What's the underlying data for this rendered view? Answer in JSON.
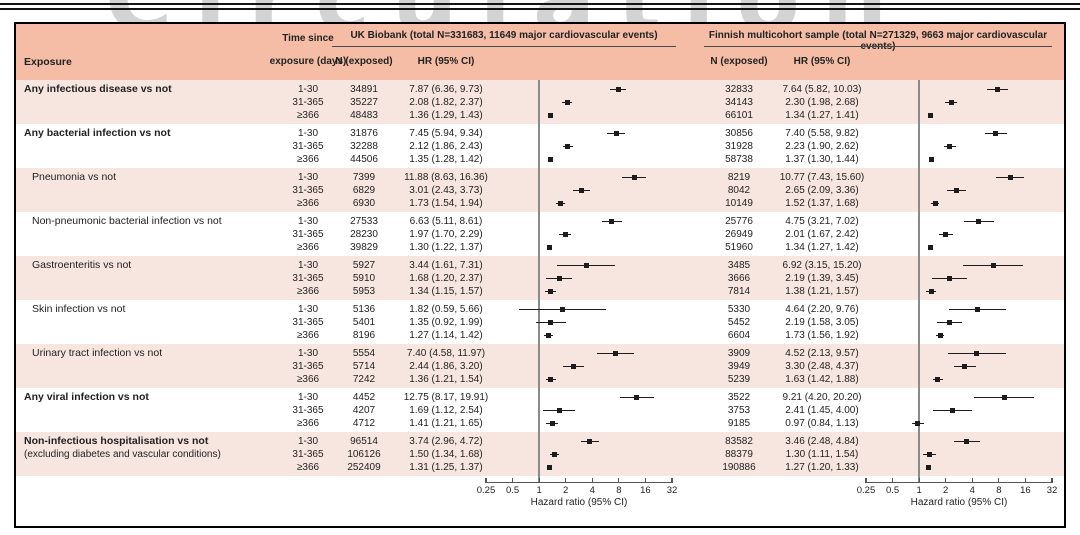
{
  "watermark": "Circulation",
  "table": {
    "headers": {
      "exposure": "Exposure",
      "time_line1": "Time since",
      "time_line2": "exposure (days)",
      "n_exposed": "N (exposed)",
      "hr": "HR (95% CI)"
    },
    "cohorts": [
      {
        "title": "UK Biobank (total N=331683, 11649 major cardiovascular events)"
      },
      {
        "title": "Finnish multicohort sample (total N=271329, 9663 major cardiovascular events)"
      }
    ]
  },
  "colors": {
    "header_bg": "#f5bda6",
    "row_alt_bg": "#f6e6df",
    "marker": "#1c1c1c",
    "reference_line": "#8a8a8a"
  },
  "chart_data": {
    "type": "forest",
    "x_scale": "log2",
    "x_range": [
      0.25,
      32
    ],
    "x_ticks": [
      0.25,
      0.5,
      1,
      2,
      4,
      8,
      16,
      32
    ],
    "x_label": "Hazard ratio (95% CI)",
    "reference_line": 1,
    "time_categories": [
      "1-30",
      "31-365",
      "≥366"
    ],
    "cohort_keys": [
      "uk",
      "fi"
    ],
    "groups": [
      {
        "exposure": "Any infectious disease vs not",
        "bold": true,
        "note": "",
        "uk": {
          "n": [
            34891,
            35227,
            48483
          ],
          "est": [
            [
              7.87,
              6.36,
              9.73
            ],
            [
              2.08,
              1.82,
              2.37
            ],
            [
              1.36,
              1.29,
              1.43
            ]
          ]
        },
        "fi": {
          "n": [
            32833,
            34143,
            66101
          ],
          "est": [
            [
              7.64,
              5.82,
              10.03
            ],
            [
              2.3,
              1.98,
              2.68
            ],
            [
              1.34,
              1.27,
              1.41
            ]
          ]
        }
      },
      {
        "exposure": "Any bacterial infection vs not",
        "bold": true,
        "note": "",
        "uk": {
          "n": [
            31876,
            32288,
            44506
          ],
          "est": [
            [
              7.45,
              5.94,
              9.34
            ],
            [
              2.12,
              1.86,
              2.43
            ],
            [
              1.35,
              1.28,
              1.42
            ]
          ]
        },
        "fi": {
          "n": [
            30856,
            31928,
            58738
          ],
          "est": [
            [
              7.4,
              5.58,
              9.82
            ],
            [
              2.23,
              1.9,
              2.62
            ],
            [
              1.37,
              1.3,
              1.44
            ]
          ]
        }
      },
      {
        "exposure": "Pneumonia vs not",
        "bold": false,
        "note": "",
        "uk": {
          "n": [
            7399,
            6829,
            6930
          ],
          "est": [
            [
              11.88,
              8.63,
              16.36
            ],
            [
              3.01,
              2.43,
              3.73
            ],
            [
              1.73,
              1.54,
              1.94
            ]
          ]
        },
        "fi": {
          "n": [
            8219,
            8042,
            10149
          ],
          "est": [
            [
              10.77,
              7.43,
              15.6
            ],
            [
              2.65,
              2.09,
              3.36
            ],
            [
              1.52,
              1.37,
              1.68
            ]
          ]
        }
      },
      {
        "exposure": "Non-pneumonic bacterial infection vs not",
        "bold": false,
        "note": "",
        "uk": {
          "n": [
            27533,
            28230,
            39829
          ],
          "est": [
            [
              6.63,
              5.11,
              8.61
            ],
            [
              1.97,
              1.7,
              2.29
            ],
            [
              1.3,
              1.22,
              1.37
            ]
          ]
        },
        "fi": {
          "n": [
            25776,
            26949,
            51960
          ],
          "est": [
            [
              4.75,
              3.21,
              7.02
            ],
            [
              2.01,
              1.67,
              2.42
            ],
            [
              1.34,
              1.27,
              1.42
            ]
          ]
        }
      },
      {
        "exposure": "Gastroenteritis vs not",
        "bold": false,
        "note": "",
        "uk": {
          "n": [
            5927,
            5910,
            5953
          ],
          "est": [
            [
              3.44,
              1.61,
              7.31
            ],
            [
              1.68,
              1.2,
              2.37
            ],
            [
              1.34,
              1.15,
              1.57
            ]
          ]
        },
        "fi": {
          "n": [
            3485,
            3666,
            7814
          ],
          "est": [
            [
              6.92,
              3.15,
              15.2
            ],
            [
              2.19,
              1.39,
              3.45
            ],
            [
              1.38,
              1.21,
              1.57
            ]
          ]
        }
      },
      {
        "exposure": "Skin infection vs not",
        "bold": false,
        "note": "",
        "uk": {
          "n": [
            5136,
            5401,
            8196
          ],
          "est": [
            [
              1.82,
              0.59,
              5.66
            ],
            [
              1.35,
              0.92,
              1.99
            ],
            [
              1.27,
              1.14,
              1.42
            ]
          ]
        },
        "fi": {
          "n": [
            5330,
            5452,
            6604
          ],
          "est": [
            [
              4.64,
              2.2,
              9.76
            ],
            [
              2.19,
              1.58,
              3.05
            ],
            [
              1.73,
              1.56,
              1.92
            ]
          ]
        }
      },
      {
        "exposure": "Urinary tract infection vs not",
        "bold": false,
        "note": "",
        "uk": {
          "n": [
            5554,
            5714,
            7242
          ],
          "est": [
            [
              7.4,
              4.58,
              11.97
            ],
            [
              2.44,
              1.86,
              3.2
            ],
            [
              1.36,
              1.21,
              1.54
            ]
          ]
        },
        "fi": {
          "n": [
            3909,
            3949,
            5239
          ],
          "est": [
            [
              4.52,
              2.13,
              9.57
            ],
            [
              3.3,
              2.48,
              4.37
            ],
            [
              1.63,
              1.42,
              1.88
            ]
          ]
        }
      },
      {
        "exposure": "Any viral infection vs not",
        "bold": true,
        "note": "",
        "uk": {
          "n": [
            4452,
            4207,
            4712
          ],
          "est": [
            [
              12.75,
              8.17,
              19.91
            ],
            [
              1.69,
              1.12,
              2.54
            ],
            [
              1.41,
              1.21,
              1.65
            ]
          ]
        },
        "fi": {
          "n": [
            3522,
            3753,
            9185
          ],
          "est": [
            [
              9.21,
              4.2,
              20.2
            ],
            [
              2.41,
              1.45,
              4.0
            ],
            [
              0.97,
              0.84,
              1.13
            ]
          ]
        }
      },
      {
        "exposure": "Non-infectious hospitalisation vs not",
        "bold": true,
        "note": "(excluding diabetes and vascular conditions)",
        "uk": {
          "n": [
            96514,
            106126,
            252409
          ],
          "est": [
            [
              3.74,
              2.96,
              4.72
            ],
            [
              1.5,
              1.34,
              1.68
            ],
            [
              1.31,
              1.25,
              1.37
            ]
          ]
        },
        "fi": {
          "n": [
            83582,
            88379,
            190886
          ],
          "est": [
            [
              3.46,
              2.48,
              4.84
            ],
            [
              1.3,
              1.11,
              1.54
            ],
            [
              1.27,
              1.2,
              1.33
            ]
          ]
        }
      }
    ]
  }
}
